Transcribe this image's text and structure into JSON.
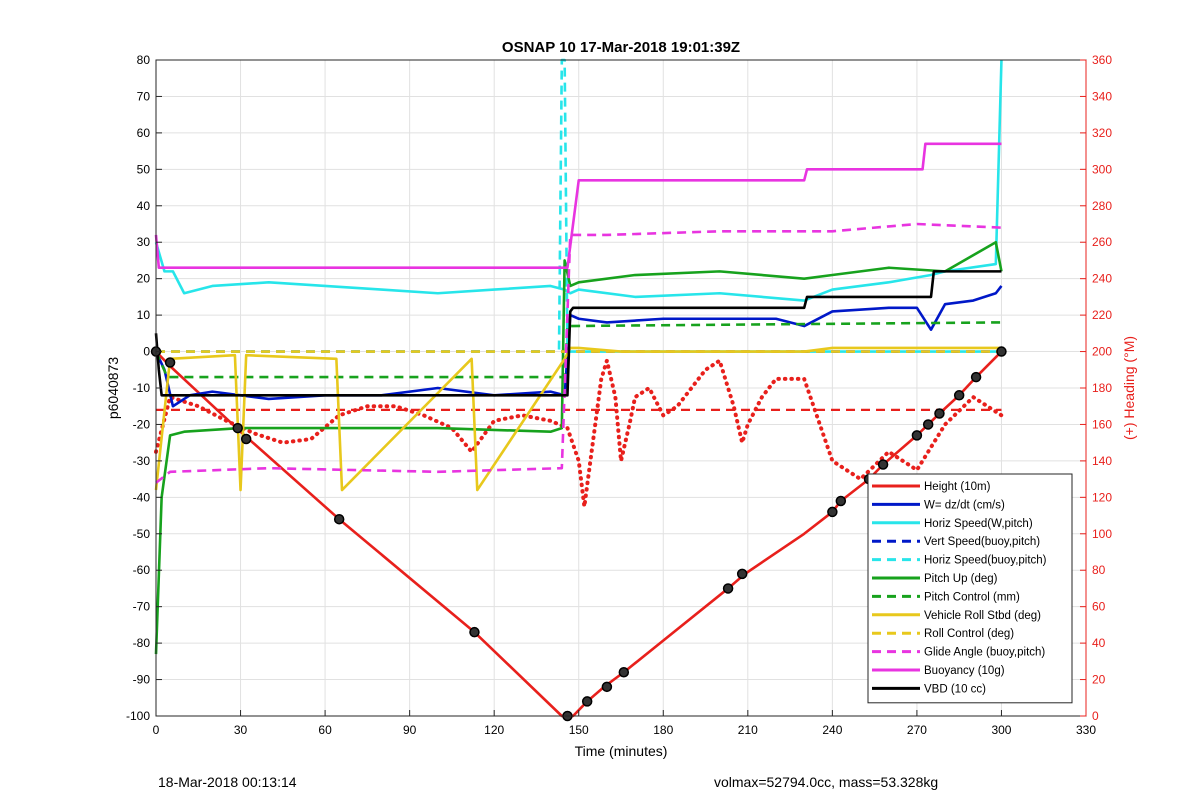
{
  "chart_data": {
    "type": "line",
    "title": "OSNAP 10 17-Mar-2018 19:01:39Z",
    "xlabel": "Time (minutes)",
    "ylabel": "p6040873",
    "ylabel_right": "(+) Heading (°M)",
    "xlim": [
      0,
      330
    ],
    "ylim": [
      -100,
      80
    ],
    "ylim_right": [
      0,
      360
    ],
    "xticks": [
      "0",
      "30",
      "60",
      "90",
      "120",
      "150",
      "180",
      "210",
      "240",
      "270",
      "300",
      "330"
    ],
    "yticks": [
      "-100",
      "-90",
      "-80",
      "-70",
      "-60",
      "-50",
      "-40",
      "-30",
      "-20",
      "-10",
      "0",
      "10",
      "20",
      "30",
      "40",
      "50",
      "60",
      "70",
      "80"
    ],
    "yticks_right": [
      "0",
      "20",
      "40",
      "60",
      "80",
      "100",
      "120",
      "140",
      "160",
      "180",
      "200",
      "220",
      "240",
      "260",
      "280",
      "300",
      "320",
      "340",
      "360"
    ],
    "grid": true,
    "legend_position": "bottom-right",
    "series": [
      {
        "name": "Height (10m)",
        "color": "#e8201c",
        "style": "solid",
        "x": [
          0,
          5,
          30,
          65,
          113,
          144,
          148,
          153,
          159,
          166,
          203,
          209,
          230,
          240,
          243,
          253,
          258,
          270,
          274,
          278,
          285,
          291,
          300
        ],
        "y": [
          0,
          -4,
          -22,
          -46,
          -77,
          -100,
          -100,
          -96,
          -92,
          -88,
          -65,
          -61,
          -50,
          -44,
          -41,
          -35,
          -31,
          -23,
          -20,
          -17,
          -12,
          -7,
          0
        ]
      },
      {
        "name": "W= dz/dt (cm/s)",
        "color": "#0018c8",
        "style": "solid",
        "x": [
          0,
          3,
          6,
          12,
          20,
          40,
          60,
          80,
          100,
          120,
          140,
          145,
          147,
          150,
          160,
          180,
          200,
          220,
          230,
          240,
          260,
          270,
          275,
          280,
          290,
          298,
          300
        ],
        "y": [
          0,
          -5,
          -15,
          -12,
          -11,
          -13,
          -12,
          -12,
          -10,
          -12,
          -11,
          -12,
          10,
          9,
          8,
          9,
          9,
          9,
          7,
          11,
          12,
          12,
          6,
          13,
          14,
          16,
          18
        ]
      },
      {
        "name": "Horiz Speed(W,pitch)",
        "color": "#27e5ea",
        "style": "solid",
        "x": [
          0,
          3,
          6,
          10,
          20,
          40,
          60,
          80,
          100,
          120,
          140,
          145,
          147,
          150,
          170,
          200,
          230,
          240,
          260,
          275,
          280,
          298,
          300
        ],
        "y": [
          30,
          22,
          22,
          16,
          18,
          19,
          18,
          17,
          16,
          17,
          18,
          17,
          16,
          17,
          15,
          16,
          14,
          17,
          19,
          21,
          22,
          24,
          80
        ]
      },
      {
        "name": "Vert Speed(buoy,pitch)",
        "color": "#0018c8",
        "style": "dashed",
        "x": [
          0,
          300
        ],
        "y": [
          0,
          0
        ]
      },
      {
        "name": "Horiz Speed(buoy,pitch)",
        "color": "#27e5ea",
        "style": "dashed",
        "x": [
          0,
          143,
          144,
          145,
          146,
          300
        ],
        "y": [
          0,
          0,
          80,
          80,
          0,
          0
        ]
      },
      {
        "name": "Pitch Up (deg)",
        "color": "#17a21d",
        "style": "solid",
        "x": [
          0,
          2,
          5,
          10,
          30,
          60,
          100,
          140,
          144,
          145,
          147,
          150,
          170,
          200,
          230,
          240,
          260,
          280,
          298,
          300
        ],
        "y": [
          -83,
          -40,
          -23,
          -22,
          -21,
          -21,
          -21,
          -22,
          -21,
          25,
          18,
          19,
          21,
          22,
          20,
          21,
          23,
          22,
          30,
          22
        ]
      },
      {
        "name": "Pitch Control (mm)",
        "color": "#17a21d",
        "style": "dashed",
        "x": [
          0,
          4,
          6,
          145,
          146,
          300
        ],
        "y": [
          0,
          -7,
          -7,
          -7,
          7,
          8
        ]
      },
      {
        "name": "Vehicle Roll Stbd (deg)",
        "color": "#e8c81c",
        "style": "solid",
        "x": [
          0,
          5,
          28,
          30,
          32,
          64,
          66,
          112,
          114,
          145,
          147,
          150,
          165,
          200,
          230,
          240,
          260,
          280,
          300
        ],
        "y": [
          -38,
          -2,
          -1,
          -38,
          -1,
          -2,
          -38,
          -2,
          -38,
          -2,
          1,
          1,
          0,
          0,
          0,
          1,
          1,
          1,
          1
        ]
      },
      {
        "name": "Roll Control (deg)",
        "color": "#e8c81c",
        "style": "dashed",
        "x": [
          0,
          300
        ],
        "y": [
          0,
          0
        ]
      },
      {
        "name": "Glide Angle (buoy,pitch)",
        "color": "#e834e0",
        "style": "dashed",
        "x": [
          0,
          5,
          40,
          100,
          144,
          147,
          160,
          200,
          240,
          270,
          300
        ],
        "y": [
          -36,
          -33,
          -32,
          -33,
          -32,
          32,
          32,
          33,
          33,
          35,
          34
        ]
      },
      {
        "name": "Buoyancy (10g)",
        "color": "#e834e0",
        "style": "solid",
        "x": [
          0,
          1,
          3,
          145,
          146,
          150,
          230,
          231,
          272,
          273,
          275,
          300
        ],
        "y": [
          32,
          23,
          23,
          23,
          23,
          47,
          47,
          50,
          50,
          57,
          57,
          57
        ]
      },
      {
        "name": "VBD (10 cc)",
        "color": "#000000",
        "style": "solid",
        "x": [
          0,
          1,
          2,
          3,
          144,
          146,
          147,
          148,
          230,
          231,
          275,
          276,
          300
        ],
        "y": [
          5,
          -5,
          -12,
          -12,
          -12,
          -12,
          11,
          12,
          12,
          15,
          15,
          22,
          22
        ]
      }
    ],
    "heading": {
      "name": "Heading (°M)",
      "color": "#e8201c",
      "style": "dotted",
      "axis": "right",
      "x": [
        0,
        5,
        15,
        25,
        35,
        45,
        55,
        65,
        75,
        85,
        95,
        105,
        112,
        120,
        130,
        140,
        143,
        146,
        150,
        152,
        155,
        158,
        160,
        163,
        165,
        168,
        170,
        175,
        180,
        185,
        190,
        195,
        200,
        205,
        208,
        210,
        215,
        220,
        225,
        230,
        240,
        250,
        260,
        270,
        280,
        290,
        300
      ],
      "y": [
        145,
        175,
        170,
        162,
        155,
        150,
        152,
        165,
        170,
        170,
        165,
        158,
        145,
        162,
        165,
        162,
        160,
        158,
        140,
        115,
        150,
        185,
        195,
        175,
        140,
        160,
        175,
        180,
        165,
        170,
        180,
        190,
        195,
        170,
        150,
        160,
        175,
        185,
        185,
        185,
        140,
        130,
        145,
        135,
        160,
        175,
        165
      ]
    },
    "heading_ref": {
      "color": "#e8201c",
      "style": "dashed",
      "axis": "right",
      "x": [
        0,
        300
      ],
      "y": [
        168,
        168
      ]
    },
    "markers": {
      "x": [
        0,
        5,
        29,
        32,
        65,
        113,
        146,
        153,
        160,
        166,
        203,
        208,
        240,
        243,
        253,
        258,
        270,
        274,
        278,
        285,
        291,
        300
      ],
      "y": [
        0,
        -3,
        -21,
        -24,
        -46,
        -77,
        -100,
        -96,
        -92,
        -88,
        -65,
        -61,
        -44,
        -41,
        -35,
        -31,
        -23,
        -20,
        -17,
        -12,
        -7,
        0
      ]
    }
  },
  "footer": {
    "left_text": "18-Mar-2018 00:13:14",
    "right_text": "volmax=52794.0cc, mass=53.328kg"
  }
}
